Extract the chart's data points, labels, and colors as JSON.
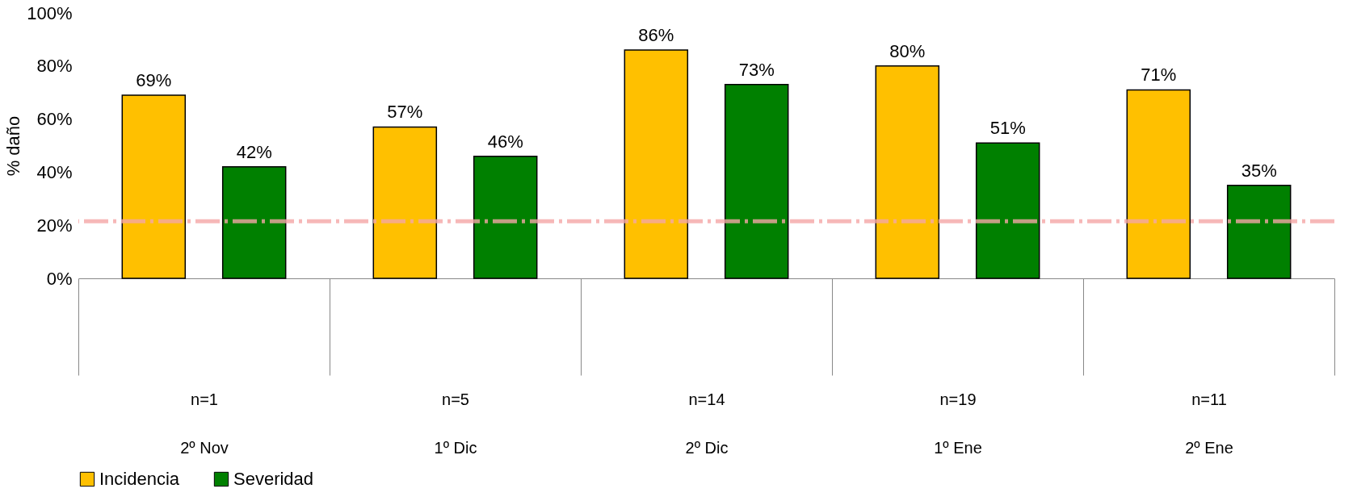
{
  "chart_data": {
    "type": "bar",
    "ylabel": "% daño",
    "categories": [
      "n=1\n2º Nov",
      "n=5\n1º Dic",
      "n=14\n2º Dic",
      "n=19\n1º Ene",
      "n=11\n2º Ene"
    ],
    "series": [
      {
        "name": "Incidencia",
        "color": "#ffc000",
        "values": [
          69,
          57,
          86,
          80,
          71
        ],
        "value_labels": [
          "69%",
          "57%",
          "86%",
          "80%",
          "71%"
        ]
      },
      {
        "name": "Severidad",
        "color": "#008000",
        "values": [
          42,
          46,
          73,
          51,
          35
        ],
        "value_labels": [
          "42%",
          "46%",
          "73%",
          "51%",
          "35%"
        ]
      }
    ],
    "ylim": [
      0,
      100
    ],
    "yticks": [
      {
        "value": 0,
        "label": "0%"
      },
      {
        "value": 20,
        "label": "20%"
      },
      {
        "value": 40,
        "label": "40%"
      },
      {
        "value": 60,
        "label": "60%"
      },
      {
        "value": 80,
        "label": "80%"
      },
      {
        "value": 100,
        "label": "100%"
      }
    ],
    "ref_lines": [
      {
        "axis": "y",
        "value": 21.5,
        "color": "#f4a6a6",
        "line_style": "dashed"
      }
    ],
    "grid": false,
    "legend": "bottom"
  }
}
